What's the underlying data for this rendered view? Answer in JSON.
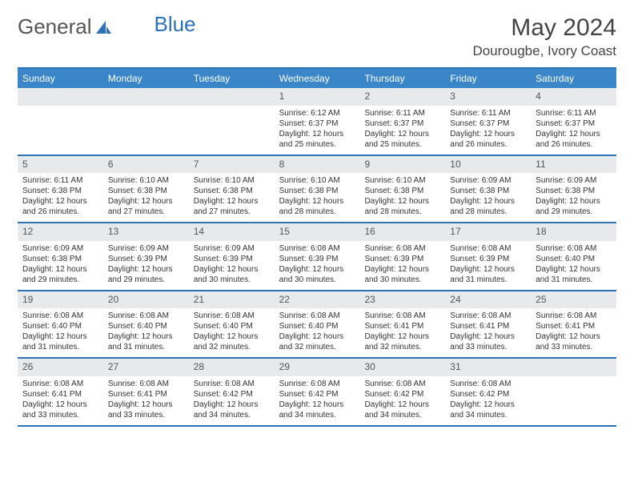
{
  "logo": {
    "part1": "General",
    "part2": "Blue"
  },
  "title": "May 2024",
  "location": "Dourougbe, Ivory Coast",
  "colors": {
    "header_bg": "#3b86c8",
    "header_text": "#ffffff",
    "border": "#2d72b8",
    "daynum_bg": "#e7e9eb",
    "text": "#333333"
  },
  "dayHeaders": [
    "Sunday",
    "Monday",
    "Tuesday",
    "Wednesday",
    "Thursday",
    "Friday",
    "Saturday"
  ],
  "weeks": [
    [
      {
        "empty": true
      },
      {
        "empty": true
      },
      {
        "empty": true
      },
      {
        "n": "1",
        "sr": "Sunrise: 6:12 AM",
        "ss": "Sunset: 6:37 PM",
        "dl": "Daylight: 12 hours and 25 minutes."
      },
      {
        "n": "2",
        "sr": "Sunrise: 6:11 AM",
        "ss": "Sunset: 6:37 PM",
        "dl": "Daylight: 12 hours and 25 minutes."
      },
      {
        "n": "3",
        "sr": "Sunrise: 6:11 AM",
        "ss": "Sunset: 6:37 PM",
        "dl": "Daylight: 12 hours and 26 minutes."
      },
      {
        "n": "4",
        "sr": "Sunrise: 6:11 AM",
        "ss": "Sunset: 6:37 PM",
        "dl": "Daylight: 12 hours and 26 minutes."
      }
    ],
    [
      {
        "n": "5",
        "sr": "Sunrise: 6:11 AM",
        "ss": "Sunset: 6:38 PM",
        "dl": "Daylight: 12 hours and 26 minutes."
      },
      {
        "n": "6",
        "sr": "Sunrise: 6:10 AM",
        "ss": "Sunset: 6:38 PM",
        "dl": "Daylight: 12 hours and 27 minutes."
      },
      {
        "n": "7",
        "sr": "Sunrise: 6:10 AM",
        "ss": "Sunset: 6:38 PM",
        "dl": "Daylight: 12 hours and 27 minutes."
      },
      {
        "n": "8",
        "sr": "Sunrise: 6:10 AM",
        "ss": "Sunset: 6:38 PM",
        "dl": "Daylight: 12 hours and 28 minutes."
      },
      {
        "n": "9",
        "sr": "Sunrise: 6:10 AM",
        "ss": "Sunset: 6:38 PM",
        "dl": "Daylight: 12 hours and 28 minutes."
      },
      {
        "n": "10",
        "sr": "Sunrise: 6:09 AM",
        "ss": "Sunset: 6:38 PM",
        "dl": "Daylight: 12 hours and 28 minutes."
      },
      {
        "n": "11",
        "sr": "Sunrise: 6:09 AM",
        "ss": "Sunset: 6:38 PM",
        "dl": "Daylight: 12 hours and 29 minutes."
      }
    ],
    [
      {
        "n": "12",
        "sr": "Sunrise: 6:09 AM",
        "ss": "Sunset: 6:38 PM",
        "dl": "Daylight: 12 hours and 29 minutes."
      },
      {
        "n": "13",
        "sr": "Sunrise: 6:09 AM",
        "ss": "Sunset: 6:39 PM",
        "dl": "Daylight: 12 hours and 29 minutes."
      },
      {
        "n": "14",
        "sr": "Sunrise: 6:09 AM",
        "ss": "Sunset: 6:39 PM",
        "dl": "Daylight: 12 hours and 30 minutes."
      },
      {
        "n": "15",
        "sr": "Sunrise: 6:08 AM",
        "ss": "Sunset: 6:39 PM",
        "dl": "Daylight: 12 hours and 30 minutes."
      },
      {
        "n": "16",
        "sr": "Sunrise: 6:08 AM",
        "ss": "Sunset: 6:39 PM",
        "dl": "Daylight: 12 hours and 30 minutes."
      },
      {
        "n": "17",
        "sr": "Sunrise: 6:08 AM",
        "ss": "Sunset: 6:39 PM",
        "dl": "Daylight: 12 hours and 31 minutes."
      },
      {
        "n": "18",
        "sr": "Sunrise: 6:08 AM",
        "ss": "Sunset: 6:40 PM",
        "dl": "Daylight: 12 hours and 31 minutes."
      }
    ],
    [
      {
        "n": "19",
        "sr": "Sunrise: 6:08 AM",
        "ss": "Sunset: 6:40 PM",
        "dl": "Daylight: 12 hours and 31 minutes."
      },
      {
        "n": "20",
        "sr": "Sunrise: 6:08 AM",
        "ss": "Sunset: 6:40 PM",
        "dl": "Daylight: 12 hours and 31 minutes."
      },
      {
        "n": "21",
        "sr": "Sunrise: 6:08 AM",
        "ss": "Sunset: 6:40 PM",
        "dl": "Daylight: 12 hours and 32 minutes."
      },
      {
        "n": "22",
        "sr": "Sunrise: 6:08 AM",
        "ss": "Sunset: 6:40 PM",
        "dl": "Daylight: 12 hours and 32 minutes."
      },
      {
        "n": "23",
        "sr": "Sunrise: 6:08 AM",
        "ss": "Sunset: 6:41 PM",
        "dl": "Daylight: 12 hours and 32 minutes."
      },
      {
        "n": "24",
        "sr": "Sunrise: 6:08 AM",
        "ss": "Sunset: 6:41 PM",
        "dl": "Daylight: 12 hours and 33 minutes."
      },
      {
        "n": "25",
        "sr": "Sunrise: 6:08 AM",
        "ss": "Sunset: 6:41 PM",
        "dl": "Daylight: 12 hours and 33 minutes."
      }
    ],
    [
      {
        "n": "26",
        "sr": "Sunrise: 6:08 AM",
        "ss": "Sunset: 6:41 PM",
        "dl": "Daylight: 12 hours and 33 minutes."
      },
      {
        "n": "27",
        "sr": "Sunrise: 6:08 AM",
        "ss": "Sunset: 6:41 PM",
        "dl": "Daylight: 12 hours and 33 minutes."
      },
      {
        "n": "28",
        "sr": "Sunrise: 6:08 AM",
        "ss": "Sunset: 6:42 PM",
        "dl": "Daylight: 12 hours and 34 minutes."
      },
      {
        "n": "29",
        "sr": "Sunrise: 6:08 AM",
        "ss": "Sunset: 6:42 PM",
        "dl": "Daylight: 12 hours and 34 minutes."
      },
      {
        "n": "30",
        "sr": "Sunrise: 6:08 AM",
        "ss": "Sunset: 6:42 PM",
        "dl": "Daylight: 12 hours and 34 minutes."
      },
      {
        "n": "31",
        "sr": "Sunrise: 6:08 AM",
        "ss": "Sunset: 6:42 PM",
        "dl": "Daylight: 12 hours and 34 minutes."
      },
      {
        "empty": true
      }
    ]
  ]
}
